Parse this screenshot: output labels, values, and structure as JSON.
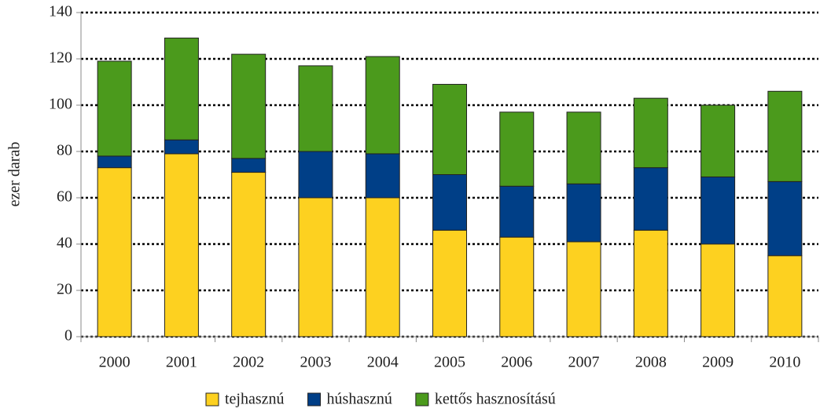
{
  "chart_data": {
    "type": "stacked_bar",
    "y_label": "ezer darab",
    "categories": [
      "2000",
      "2001",
      "2002",
      "2003",
      "2004",
      "2005",
      "2006",
      "2007",
      "2008",
      "2009",
      "2010"
    ],
    "series": [
      {
        "name": "tejhasznú",
        "color": "#fdd120",
        "values": [
          73,
          79,
          71,
          60,
          60,
          46,
          43,
          41,
          46,
          40,
          35
        ]
      },
      {
        "name": "húshasznú",
        "color": "#003f87",
        "values": [
          5,
          6,
          6,
          20,
          19,
          24,
          22,
          25,
          27,
          29,
          32
        ]
      },
      {
        "name": "kettős hasznosítású",
        "color": "#4b9a1c",
        "values": [
          41,
          44,
          45,
          37,
          42,
          39,
          32,
          31,
          30,
          31,
          39
        ]
      }
    ],
    "ylim": [
      0,
      140
    ],
    "yticks": [
      0,
      20,
      40,
      60,
      80,
      100,
      120,
      140
    ],
    "grid": true,
    "legend": "bottom"
  }
}
